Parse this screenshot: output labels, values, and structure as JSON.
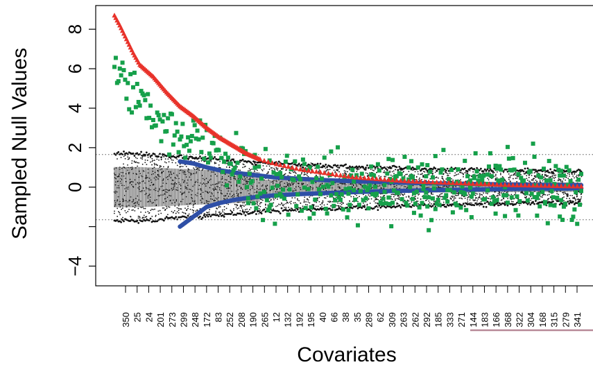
{
  "chart_data": {
    "type": "scatter",
    "title": "",
    "xlabel": "Covariates",
    "ylabel": "Sampled Null Values",
    "ylim": [
      -5,
      9.2
    ],
    "yticks": [
      8,
      6,
      4,
      2,
      0,
      -2,
      -4
    ],
    "ytick_labels": [
      "8",
      "6",
      "4",
      "2",
      "0",
      "",
      "−4"
    ],
    "threshold_lines": [
      1.65,
      -1.65
    ],
    "n_covariates": 350,
    "x_tick_labels": [
      "350",
      "25",
      "24",
      "201",
      "273",
      "299",
      "248",
      "172",
      "83",
      "252",
      "208",
      "190",
      "265",
      "12",
      "132",
      "192",
      "195",
      "40",
      "66",
      "38",
      "35",
      "289",
      "62",
      "309",
      "263",
      "262",
      "292",
      "185",
      "333",
      "271",
      "144",
      "183",
      "166",
      "368",
      "322",
      "304",
      "168",
      "315",
      "279",
      "341"
    ],
    "grid": false,
    "legend": "none",
    "colors": {
      "triangle_series": "#e8322a",
      "square_series": "#16a04a",
      "circle_series": "#2e4fa6",
      "null_points": "#111111",
      "threshold_line": "#555555",
      "accent_bar": "#b88a98"
    },
    "triangle_series": {
      "marker": "triangle",
      "x": [
        1,
        5,
        10,
        15,
        20,
        30,
        40,
        50,
        60,
        70,
        80,
        90,
        100,
        110,
        120,
        140,
        160,
        180,
        200,
        220,
        240,
        260,
        280,
        300,
        320,
        340,
        350
      ],
      "y": [
        8.7,
        8.2,
        7.5,
        6.8,
        6.2,
        5.6,
        4.8,
        4.1,
        3.6,
        3.0,
        2.5,
        2.1,
        1.7,
        1.4,
        1.2,
        0.9,
        0.7,
        0.5,
        0.4,
        0.3,
        0.25,
        0.2,
        0.15,
        0.1,
        0.08,
        0.05,
        0.04
      ]
    },
    "square_series": {
      "marker": "square",
      "x": [
        1,
        5,
        10,
        15,
        20,
        30,
        40,
        50,
        60,
        70,
        80,
        90,
        100,
        120,
        140,
        160,
        180,
        200,
        220,
        240,
        260,
        280,
        300,
        320,
        340
      ],
      "y": [
        6.5,
        6.4,
        5.3,
        4.7,
        4.2,
        3.7,
        3.2,
        2.7,
        2.4,
        2.1,
        1.6,
        1.3,
        1.1,
        0.7,
        0.5,
        0.4,
        0.3,
        0.2,
        0.2,
        0.15,
        0.1,
        0.1,
        0.1,
        0.05,
        0.05
      ],
      "scatter": 1.4
    },
    "circle_series": {
      "marker": "circle",
      "x": [
        50,
        60,
        70,
        80,
        90,
        100,
        110,
        120,
        140,
        160,
        180,
        200,
        220,
        240,
        260,
        280,
        300,
        320,
        340,
        350
      ],
      "upper_y": [
        1.3,
        1.2,
        1.0,
        0.85,
        0.75,
        0.65,
        0.58,
        0.5,
        0.42,
        0.35,
        0.3,
        0.26,
        0.22,
        0.19,
        0.17,
        0.15,
        0.13,
        0.11,
        0.1,
        0.1
      ],
      "lower_y": [
        -2.0,
        -1.5,
        -1.0,
        -0.8,
        -0.65,
        -0.55,
        -0.48,
        -0.42,
        -0.35,
        -0.3,
        -0.25,
        -0.21,
        -0.18,
        -0.15,
        -0.13,
        -0.11,
        -0.09,
        -0.08,
        -0.07,
        -0.06
      ]
    },
    "null_band": {
      "marker": "dot",
      "x": [
        1,
        20,
        40,
        60,
        80,
        100,
        140,
        180,
        220,
        260,
        300,
        350
      ],
      "half_width": [
        1.7,
        1.7,
        1.6,
        1.5,
        1.4,
        1.3,
        1.15,
        1.05,
        0.95,
        0.9,
        0.85,
        0.8
      ]
    }
  }
}
